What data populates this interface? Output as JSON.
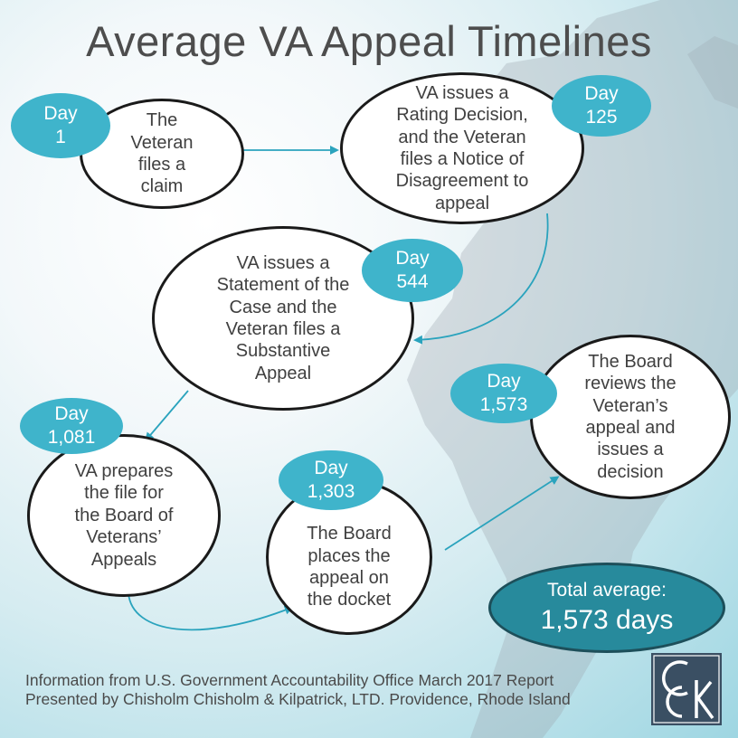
{
  "title": "Average VA Appeal Timelines",
  "steps": [
    {
      "day_label": "Day",
      "day": "1",
      "text": [
        "The",
        "Veteran",
        "files a",
        "claim"
      ]
    },
    {
      "day_label": "Day",
      "day": "125",
      "text": [
        "VA issues a",
        "Rating Decision,",
        "and the Veteran",
        "files a Notice of",
        "Disagreement to",
        "appeal"
      ]
    },
    {
      "day_label": "Day",
      "day": "544",
      "text": [
        "VA issues a",
        "Statement of the",
        "Case and the",
        "Veteran files a",
        "Substantive",
        "Appeal"
      ]
    },
    {
      "day_label": "Day",
      "day": "1,081",
      "text": [
        "VA prepares",
        "the file for",
        "the Board of",
        "Veterans’",
        "Appeals"
      ]
    },
    {
      "day_label": "Day",
      "day": "1,303",
      "text": [
        "The Board",
        "places the",
        "appeal on",
        "the docket"
      ]
    },
    {
      "day_label": "Day",
      "day": "1,573",
      "text": [
        "The Board",
        "reviews the",
        "Veteran’s",
        "appeal and",
        "issues a",
        "decision"
      ]
    }
  ],
  "total": {
    "label": "Total average:",
    "value": "1,573 days"
  },
  "footer": {
    "line1": "Information from U.S. Government Accountability Office March 2017 Report",
    "line2": "Presented by Chisholm Chisholm & Kilpatrick, LTD. Providence, Rhode Island"
  },
  "logo_text": "CCK",
  "colors": {
    "day_bubble": "#3fb4cb",
    "total_bubble": "#278a9c",
    "title": "#4d4d4d",
    "arrow": "#2aa3bd"
  }
}
